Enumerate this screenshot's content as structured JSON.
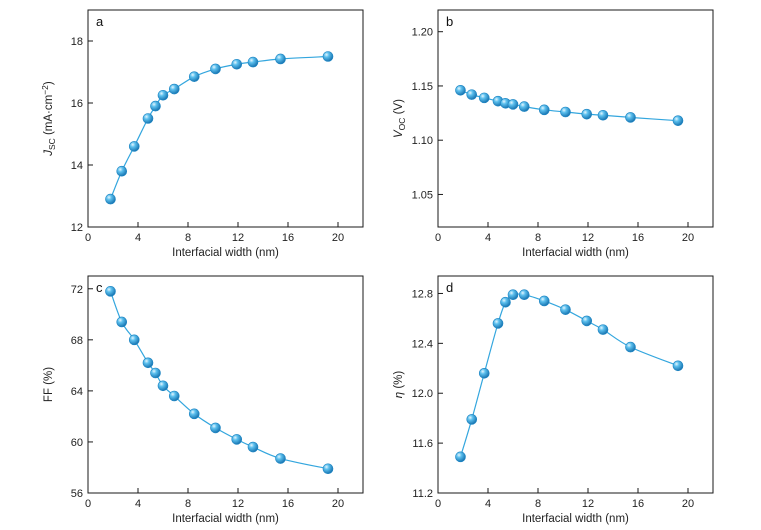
{
  "chart_data": [
    {
      "type": "scatter",
      "panel": "a",
      "xlabel": "Interfacial width (nm)",
      "ylabel": "J_SC (mA·cm⁻²)",
      "ylabel_main": "J",
      "ylabel_sub": "SC",
      "ylabel_rest": " (mA·cm",
      "ylabel_sup": "−2",
      "ylabel_close": ")",
      "ylabel_italic": true,
      "xlim": [
        0,
        22
      ],
      "ylim": [
        12,
        19
      ],
      "xticks": [
        "0",
        "4",
        "8",
        "12",
        "16",
        "20"
      ],
      "yticks": [
        "12",
        "14",
        "16",
        "18"
      ],
      "x": [
        1.8,
        2.7,
        3.7,
        4.8,
        5.4,
        6.0,
        6.9,
        8.5,
        10.2,
        11.9,
        13.2,
        15.4,
        19.2
      ],
      "y": [
        12.9,
        13.8,
        14.6,
        15.5,
        15.9,
        16.25,
        16.45,
        16.85,
        17.1,
        17.25,
        17.32,
        17.42,
        17.5
      ]
    },
    {
      "type": "scatter",
      "panel": "b",
      "xlabel": "Interfacial width (nm)",
      "ylabel": "V_OC (V)",
      "ylabel_main": "V",
      "ylabel_sub": "OC",
      "ylabel_rest": " (V)",
      "ylabel_sup": "",
      "ylabel_close": "",
      "ylabel_italic": true,
      "xlim": [
        0,
        22
      ],
      "ylim": [
        1.02,
        1.22
      ],
      "xticks": [
        "0",
        "4",
        "8",
        "12",
        "16",
        "20"
      ],
      "yticks": [
        "1.05",
        "1.10",
        "1.15",
        "1.20"
      ],
      "x": [
        1.8,
        2.7,
        3.7,
        4.8,
        5.4,
        6.0,
        6.9,
        8.5,
        10.2,
        11.9,
        13.2,
        15.4,
        19.2
      ],
      "y": [
        1.146,
        1.142,
        1.139,
        1.136,
        1.134,
        1.133,
        1.131,
        1.128,
        1.126,
        1.124,
        1.123,
        1.121,
        1.118
      ]
    },
    {
      "type": "scatter",
      "panel": "c",
      "xlabel": "Interfacial width (nm)",
      "ylabel": "FF (%)",
      "ylabel_main": "FF (%)",
      "ylabel_sub": "",
      "ylabel_rest": "",
      "ylabel_sup": "",
      "ylabel_close": "",
      "ylabel_italic": false,
      "xlim": [
        0,
        22
      ],
      "ylim": [
        56,
        73
      ],
      "xticks": [
        "0",
        "4",
        "8",
        "12",
        "16",
        "20"
      ],
      "yticks": [
        "56",
        "60",
        "64",
        "68",
        "72"
      ],
      "x": [
        1.8,
        2.7,
        3.7,
        4.8,
        5.4,
        6.0,
        6.9,
        8.5,
        10.2,
        11.9,
        13.2,
        15.4,
        19.2
      ],
      "y": [
        71.8,
        69.4,
        68.0,
        66.2,
        65.4,
        64.4,
        63.6,
        62.2,
        61.1,
        60.2,
        59.6,
        58.7,
        57.9
      ]
    },
    {
      "type": "scatter",
      "panel": "d",
      "xlabel": "Interfacial width (nm)",
      "ylabel": "η (%)",
      "ylabel_main": "η",
      "ylabel_sub": "",
      "ylabel_rest": " (%)",
      "ylabel_sup": "",
      "ylabel_close": "",
      "ylabel_italic": true,
      "xlim": [
        0,
        22
      ],
      "ylim": [
        11.2,
        12.94
      ],
      "xticks": [
        "0",
        "4",
        "8",
        "12",
        "16",
        "20"
      ],
      "yticks": [
        "11.2",
        "11.6",
        "12.0",
        "12.4",
        "12.8"
      ],
      "x": [
        1.8,
        2.7,
        3.7,
        4.8,
        5.4,
        6.0,
        6.9,
        8.5,
        10.2,
        11.9,
        13.2,
        15.4,
        19.2
      ],
      "y": [
        11.49,
        11.79,
        12.16,
        12.56,
        12.73,
        12.79,
        12.79,
        12.74,
        12.67,
        12.58,
        12.51,
        12.37,
        12.22
      ]
    }
  ],
  "colors": {
    "marker": "#2e9fd8",
    "marker_dark": "#1673b0",
    "marker_light": "#bfe6fa",
    "line": "#33a6de",
    "axes": "#1a1a1a"
  }
}
